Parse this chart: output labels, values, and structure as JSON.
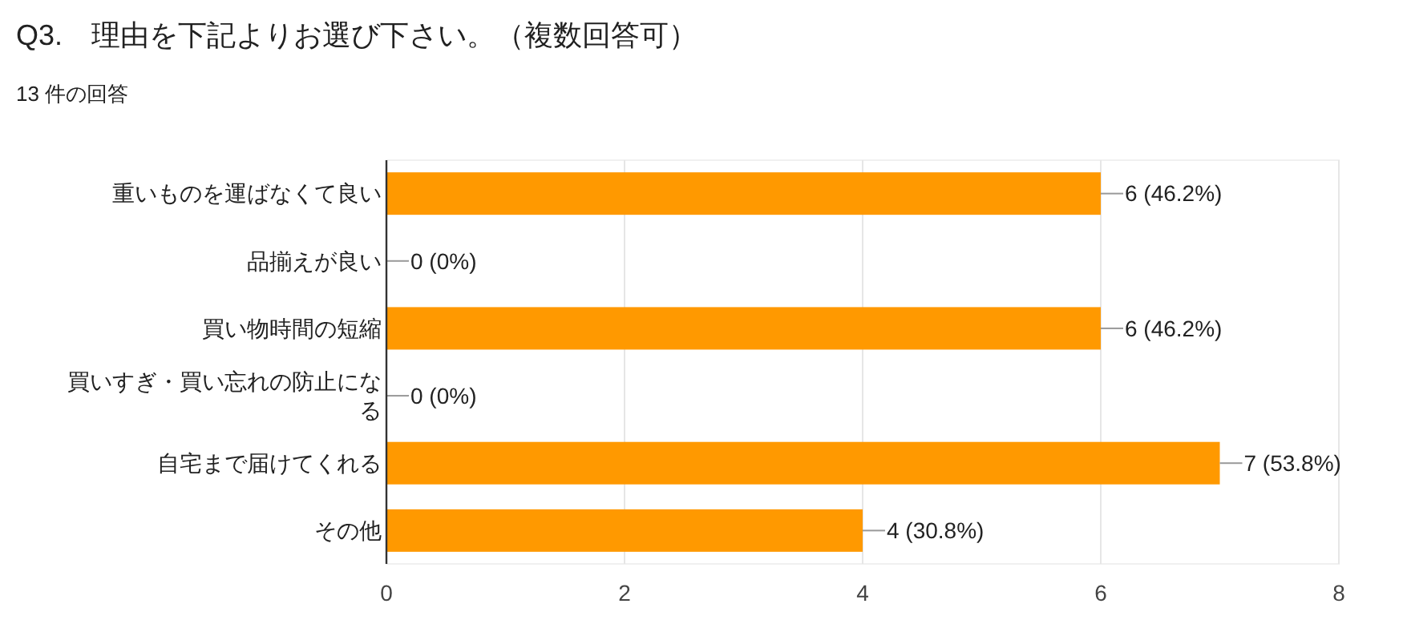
{
  "chart_data": {
    "type": "bar",
    "orientation": "horizontal",
    "title": "Q3.　理由を下記よりお選び下さい。（複数回答可）",
    "subtitle": "13 件の回答",
    "categories": [
      "重いものを運ばなくて良い",
      "品揃えが良い",
      "買い物時間の短縮",
      "買いすぎ・買い忘れの防止になる",
      "自宅まで届けてくれる",
      "その他"
    ],
    "values": [
      6,
      0,
      6,
      0,
      7,
      4
    ],
    "value_labels": [
      "6 (46.2%)",
      "0 (0%)",
      "6 (46.2%)",
      "0 (0%)",
      "7 (53.8%)",
      "4 (30.8%)"
    ],
    "color": "#ff9900",
    "xlim": [
      0,
      8
    ],
    "xticks": [
      0,
      2,
      4,
      6,
      8
    ],
    "grid": "x"
  }
}
